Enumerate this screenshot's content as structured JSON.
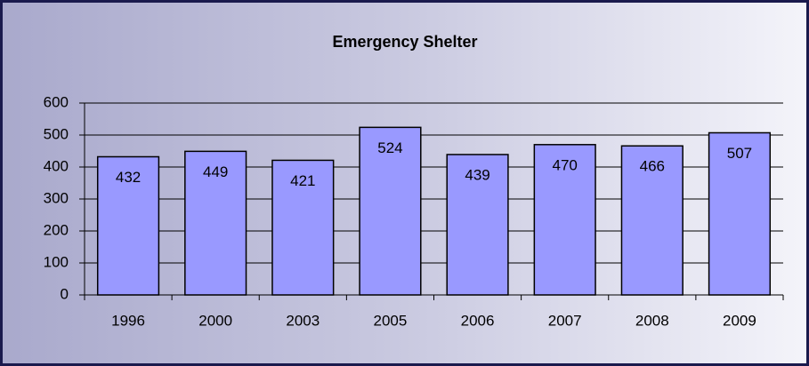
{
  "chart_data": {
    "type": "bar",
    "title": "Emergency Shelter",
    "categories": [
      "1996",
      "2000",
      "2003",
      "2005",
      "2006",
      "2007",
      "2008",
      "2009"
    ],
    "values": [
      432,
      449,
      421,
      524,
      439,
      470,
      466,
      507
    ],
    "color": "#9999ff",
    "ylim": [
      0,
      600
    ],
    "yticks": [
      0,
      100,
      200,
      300,
      400,
      500,
      600
    ],
    "grid": true
  }
}
